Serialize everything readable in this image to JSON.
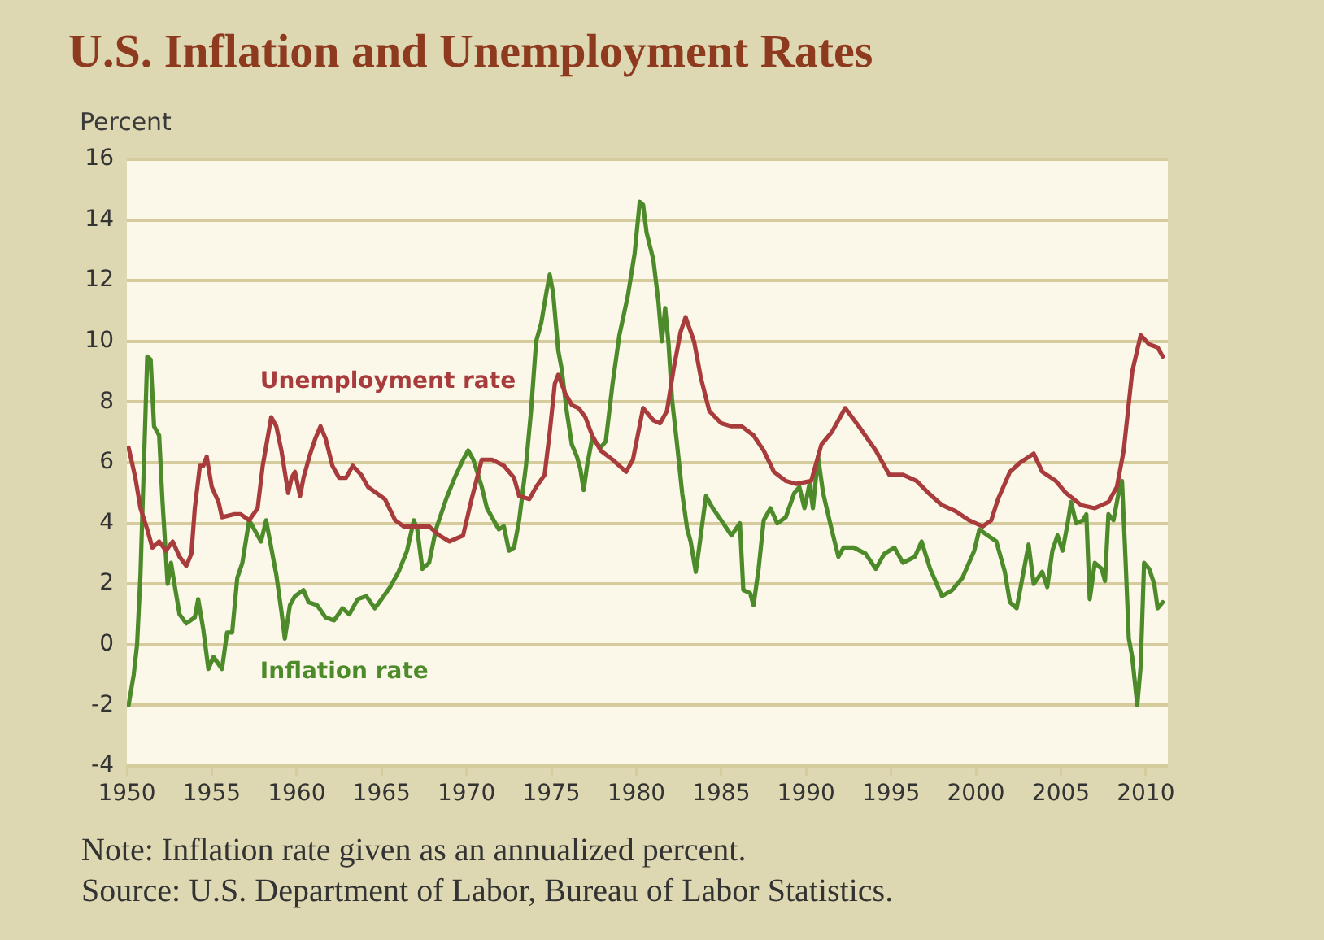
{
  "chart_data": {
    "type": "line",
    "title": "U.S. Inflation and Unemployment Rates",
    "ylabel": "Percent",
    "annotations": [
      "Note: Inflation rate given as an annualized percent.",
      "Source: U.S. Department of Labor, Bureau of Labor Statistics."
    ],
    "xlim": [
      1950,
      2011.3
    ],
    "xticks": [
      1950,
      1955,
      1960,
      1965,
      1970,
      1975,
      1980,
      1985,
      1990,
      1995,
      2000,
      2005,
      2010
    ],
    "ylim": [
      -4,
      16
    ],
    "yticks": [
      -4,
      -2,
      0,
      2,
      4,
      6,
      8,
      10,
      12,
      14,
      16
    ],
    "grid": "y",
    "legend": false,
    "marker": "none",
    "series": [
      {
        "name": "Unemployment rate",
        "color": "#a83c3c",
        "x": [
          1950.1,
          1950.5,
          1950.8,
          1951.2,
          1951.5,
          1951.9,
          1952.3,
          1952.7,
          1953.1,
          1953.5,
          1953.8,
          1954.0,
          1954.3,
          1954.5,
          1954.7,
          1955.0,
          1955.4,
          1955.6,
          1956.3,
          1956.7,
          1957.2,
          1957.7,
          1958.0,
          1958.5,
          1958.8,
          1959.1,
          1959.5,
          1959.7,
          1959.9,
          1960.2,
          1960.4,
          1960.8,
          1961.1,
          1961.4,
          1961.7,
          1962.1,
          1962.5,
          1962.9,
          1963.3,
          1963.8,
          1964.2,
          1964.7,
          1965.2,
          1965.8,
          1966.3,
          1967.1,
          1967.8,
          1968.4,
          1969.0,
          1969.8,
          1970.3,
          1970.9,
          1971.5,
          1972.2,
          1972.8,
          1973.1,
          1973.7,
          1974.1,
          1974.6,
          1974.9,
          1975.2,
          1975.4,
          1975.8,
          1976.2,
          1976.6,
          1977.0,
          1977.4,
          1977.9,
          1978.6,
          1979.4,
          1979.8,
          1980.4,
          1981.0,
          1981.4,
          1981.8,
          1982.2,
          1982.6,
          1982.9,
          1983.4,
          1983.8,
          1984.3,
          1985.0,
          1985.6,
          1986.2,
          1986.9,
          1987.5,
          1988.1,
          1988.8,
          1989.4,
          1990.3,
          1990.9,
          1991.5,
          1992.3,
          1993.1,
          1994.1,
          1994.9,
          1995.7,
          1996.5,
          1997.2,
          1998.0,
          1998.8,
          1999.6,
          2000.4,
          2000.9,
          2001.3,
          2002.0,
          2002.6,
          2003.4,
          2003.9,
          2004.7,
          2005.3,
          2006.2,
          2007.0,
          2007.8,
          2008.3,
          2008.7,
          2009.2,
          2009.7,
          2010.2,
          2010.7,
          2011.0
        ],
        "values": [
          6.5,
          5.5,
          4.5,
          3.8,
          3.2,
          3.4,
          3.1,
          3.4,
          2.9,
          2.6,
          3.0,
          4.5,
          5.9,
          5.9,
          6.2,
          5.2,
          4.7,
          4.2,
          4.3,
          4.3,
          4.1,
          4.5,
          5.9,
          7.5,
          7.2,
          6.4,
          5.0,
          5.5,
          5.7,
          4.9,
          5.5,
          6.3,
          6.8,
          7.2,
          6.8,
          5.9,
          5.5,
          5.5,
          5.9,
          5.6,
          5.2,
          5.0,
          4.8,
          4.1,
          3.9,
          3.9,
          3.9,
          3.6,
          3.4,
          3.6,
          4.8,
          6.1,
          6.1,
          5.9,
          5.5,
          4.9,
          4.8,
          5.2,
          5.6,
          7.0,
          8.6,
          8.9,
          8.3,
          7.9,
          7.8,
          7.5,
          6.9,
          6.4,
          6.1,
          5.7,
          6.1,
          7.8,
          7.4,
          7.3,
          7.7,
          9.1,
          10.3,
          10.8,
          10.0,
          8.8,
          7.7,
          7.3,
          7.2,
          7.2,
          6.9,
          6.4,
          5.7,
          5.4,
          5.3,
          5.4,
          6.6,
          7.0,
          7.8,
          7.2,
          6.4,
          5.6,
          5.6,
          5.4,
          5.0,
          4.6,
          4.4,
          4.1,
          3.9,
          4.1,
          4.8,
          5.7,
          6.0,
          6.3,
          5.7,
          5.4,
          5.0,
          4.6,
          4.5,
          4.7,
          5.2,
          6.4,
          9.0,
          10.2,
          9.9,
          9.8,
          9.5
        ]
      },
      {
        "name": "Inflation rate",
        "color": "#4d8a2a",
        "x": [
          1950.1,
          1950.4,
          1950.6,
          1950.8,
          1951.0,
          1951.2,
          1951.4,
          1951.6,
          1951.9,
          1952.1,
          1952.4,
          1952.6,
          1952.8,
          1953.1,
          1953.5,
          1954.0,
          1954.2,
          1954.5,
          1954.8,
          1955.1,
          1955.6,
          1955.9,
          1956.2,
          1956.5,
          1956.8,
          1957.2,
          1957.5,
          1957.9,
          1958.2,
          1958.5,
          1958.8,
          1959.1,
          1959.3,
          1959.6,
          1959.9,
          1960.4,
          1960.7,
          1961.2,
          1961.7,
          1962.2,
          1962.7,
          1963.1,
          1963.6,
          1964.1,
          1964.6,
          1965.0,
          1965.5,
          1966.0,
          1966.5,
          1966.9,
          1967.1,
          1967.4,
          1967.8,
          1968.2,
          1968.8,
          1969.3,
          1969.8,
          1970.1,
          1970.4,
          1970.9,
          1971.2,
          1971.5,
          1971.9,
          1972.2,
          1972.5,
          1972.8,
          1973.1,
          1973.5,
          1973.8,
          1974.1,
          1974.4,
          1974.7,
          1974.9,
          1975.1,
          1975.4,
          1975.6,
          1975.9,
          1976.2,
          1976.5,
          1976.7,
          1976.9,
          1977.1,
          1977.4,
          1977.9,
          1978.2,
          1978.6,
          1979.0,
          1979.5,
          1979.9,
          1980.2,
          1980.4,
          1980.6,
          1981.0,
          1981.3,
          1981.5,
          1981.7,
          1981.9,
          1982.1,
          1982.4,
          1982.7,
          1983.0,
          1983.2,
          1983.5,
          1983.7,
          1984.1,
          1984.5,
          1985.0,
          1985.6,
          1986.1,
          1986.3,
          1986.7,
          1986.9,
          1987.2,
          1987.5,
          1987.9,
          1988.3,
          1988.8,
          1989.3,
          1989.6,
          1989.9,
          1990.2,
          1990.4,
          1990.7,
          1991.0,
          1991.5,
          1991.9,
          1992.2,
          1992.8,
          1993.5,
          1994.1,
          1994.6,
          1995.2,
          1995.7,
          1996.4,
          1996.8,
          1997.3,
          1998.0,
          1998.6,
          1999.2,
          1999.9,
          2000.2,
          2000.7,
          2001.2,
          2001.7,
          2002.0,
          2002.4,
          2002.8,
          2003.1,
          2003.4,
          2003.9,
          2004.2,
          2004.5,
          2004.8,
          2005.1,
          2005.4,
          2005.6,
          2005.9,
          2006.3,
          2006.5,
          2006.7,
          2007.0,
          2007.4,
          2007.6,
          2007.8,
          2008.1,
          2008.4,
          2008.6,
          2008.8,
          2009.0,
          2009.2,
          2009.5,
          2009.7,
          2009.9,
          2010.2,
          2010.5,
          2010.7,
          2011.0
        ],
        "values": [
          -2.0,
          -1.0,
          0.0,
          2.3,
          5.9,
          9.5,
          9.4,
          7.2,
          6.9,
          4.7,
          2.0,
          2.7,
          2.0,
          1.0,
          0.7,
          0.9,
          1.5,
          0.5,
          -0.8,
          -0.4,
          -0.8,
          0.4,
          0.4,
          2.2,
          2.7,
          4.1,
          3.8,
          3.4,
          4.1,
          3.2,
          2.3,
          1.1,
          0.2,
          1.3,
          1.6,
          1.8,
          1.4,
          1.3,
          0.9,
          0.8,
          1.2,
          1.0,
          1.5,
          1.6,
          1.2,
          1.5,
          1.9,
          2.4,
          3.1,
          4.1,
          3.8,
          2.5,
          2.7,
          3.8,
          4.8,
          5.5,
          6.1,
          6.4,
          6.1,
          5.2,
          4.5,
          4.2,
          3.8,
          3.9,
          3.1,
          3.2,
          4.1,
          5.9,
          7.7,
          10.0,
          10.6,
          11.6,
          12.2,
          11.6,
          9.7,
          9.1,
          7.7,
          6.6,
          6.2,
          5.8,
          5.1,
          5.9,
          6.8,
          6.5,
          6.7,
          8.6,
          10.2,
          11.5,
          12.9,
          14.6,
          14.5,
          13.6,
          12.7,
          11.3,
          10.0,
          11.1,
          9.9,
          8.1,
          6.6,
          5.0,
          3.8,
          3.4,
          2.4,
          3.2,
          4.9,
          4.5,
          4.1,
          3.6,
          4.0,
          1.8,
          1.7,
          1.3,
          2.5,
          4.1,
          4.5,
          4.0,
          4.2,
          5.0,
          5.2,
          4.5,
          5.3,
          4.5,
          6.2,
          5.0,
          3.8,
          2.9,
          3.2,
          3.2,
          3.0,
          2.5,
          3.0,
          3.2,
          2.7,
          2.9,
          3.4,
          2.5,
          1.6,
          1.8,
          2.2,
          3.1,
          3.8,
          3.6,
          3.4,
          2.4,
          1.4,
          1.2,
          2.4,
          3.3,
          2.0,
          2.4,
          1.9,
          3.1,
          3.6,
          3.1,
          4.0,
          4.7,
          4.0,
          4.1,
          4.3,
          1.5,
          2.7,
          2.5,
          2.1,
          4.3,
          4.1,
          5.0,
          5.4,
          2.9,
          0.2,
          -0.4,
          -2.0,
          -0.7,
          2.7,
          2.5,
          2.0,
          1.2,
          1.4
        ]
      }
    ]
  }
}
